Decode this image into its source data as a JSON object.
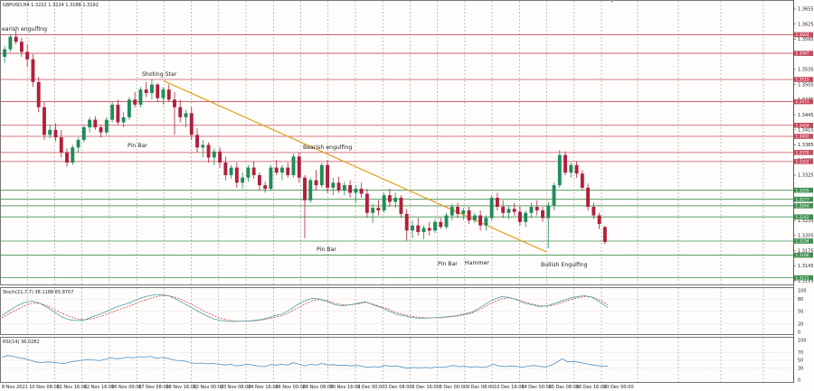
{
  "symbol_header": "GBPUSD,H4  1.3222 1.3224 1.3188 1.3192",
  "colors": {
    "background": "#fffdfb",
    "grid": "#9a9a9a",
    "bull_candle": "#1f8c5a",
    "bear_candle": "#b0203a",
    "resistance": "#c74c5c",
    "support": "#3f8f4f",
    "trendline": "#e0a020",
    "stoch_main": "#4aa0a6",
    "stoch_signal": "#d0404a",
    "rsi": "#4a90c8"
  },
  "chart_data": {
    "type": "candlestick",
    "symbol": "GBPUSD",
    "timeframe": "H4",
    "ohlc_header": {
      "open": 1.3222,
      "high": 1.3224,
      "low": 1.3188,
      "close": 1.3192
    },
    "y_axis_labels": [
      "1.3655",
      "1.3625",
      "1.3595",
      "1.3565",
      "1.3535",
      "1.3505",
      "1.3475",
      "1.3445",
      "1.3415",
      "1.3385",
      "1.3355",
      "1.3325",
      "1.3295",
      "1.3265",
      "1.3235",
      "1.3205",
      "1.3175",
      "1.3145",
      "1.3115"
    ],
    "x_axis_labels": [
      "8 Nov 2021",
      "10 Nov 08:00",
      "11 Nov 16:00",
      "12 Nov 16:00",
      "16 Nov 00:00",
      "17 Nov 08:00",
      "18 Nov 16:00",
      "22 Nov 00:00",
      "23 Nov 08:00",
      "24 Nov 16:00",
      "26 Nov 00:00",
      "29 Nov 08:00",
      "30 Nov 16:00",
      "2 Dec 00:00",
      "3 Dec 08:00",
      "6 Dec 16:00",
      "8 Dec 00:00",
      "9 Dec 08:00",
      "10 Dec 16:00",
      "14 Dec 00:00",
      "15 Dec 08:00",
      "16 Dec 16:00",
      "20 Dec 00:00"
    ],
    "resistance_levels": [
      1.3604,
      1.3567,
      1.3515,
      1.3471,
      1.3424,
      1.3402,
      1.337,
      1.3352
    ],
    "support_levels": [
      1.3295,
      1.3277,
      1.3264,
      1.3242,
      1.3194,
      1.3166,
      1.3121
    ],
    "price_tags": [
      "1.3604",
      "1.3567",
      "1.3515",
      "1.3471",
      "1.3424",
      "1.3402",
      "1.3370",
      "1.3352",
      "1.3295",
      "1.3277",
      "1.3264",
      "1.3242",
      "1.3194",
      "1.3166",
      "1.3121"
    ],
    "trendline": {
      "from": {
        "x": "18 Nov 16:00",
        "y": 1.3512
      },
      "to": {
        "x": "15 Dec 08:00",
        "y": 1.3172
      }
    },
    "annotations": [
      "earish engulfing",
      "Shoting Star",
      "Pin Bar",
      "Bearish engulfing",
      "Pin Bar",
      "Pin Bar",
      "Hammer",
      "Bullish Engulfing"
    ],
    "candles": [
      [
        1.356,
        1.3582,
        1.3548,
        1.3575
      ],
      [
        1.3575,
        1.3605,
        1.357,
        1.36
      ],
      [
        1.36,
        1.3612,
        1.3585,
        1.359
      ],
      [
        1.359,
        1.3598,
        1.356,
        1.357
      ],
      [
        1.357,
        1.3585,
        1.354,
        1.3555
      ],
      [
        1.3555,
        1.3565,
        1.35,
        1.351
      ],
      [
        1.351,
        1.352,
        1.345,
        1.346
      ],
      [
        1.346,
        1.347,
        1.3395,
        1.3405
      ],
      [
        1.3405,
        1.3425,
        1.3398,
        1.3415
      ],
      [
        1.3415,
        1.3428,
        1.3392,
        1.34
      ],
      [
        1.34,
        1.3415,
        1.336,
        1.337
      ],
      [
        1.337,
        1.3378,
        1.3342,
        1.335
      ],
      [
        1.335,
        1.3385,
        1.3345,
        1.338
      ],
      [
        1.338,
        1.34,
        1.337,
        1.3395
      ],
      [
        1.3395,
        1.3425,
        1.339,
        1.342
      ],
      [
        1.342,
        1.344,
        1.341,
        1.3435
      ],
      [
        1.3435,
        1.3442,
        1.3415,
        1.342
      ],
      [
        1.342,
        1.3425,
        1.34,
        1.341
      ],
      [
        1.341,
        1.344,
        1.3405,
        1.3435
      ],
      [
        1.3435,
        1.347,
        1.343,
        1.3465
      ],
      [
        1.3465,
        1.3475,
        1.3425,
        1.343
      ],
      [
        1.343,
        1.345,
        1.342,
        1.344
      ],
      [
        1.344,
        1.348,
        1.3435,
        1.3475
      ],
      [
        1.3475,
        1.349,
        1.346,
        1.3465
      ],
      [
        1.3465,
        1.35,
        1.346,
        1.3495
      ],
      [
        1.3495,
        1.351,
        1.348,
        1.3488
      ],
      [
        1.3488,
        1.3515,
        1.3475,
        1.3505
      ],
      [
        1.3505,
        1.3508,
        1.347,
        1.3478
      ],
      [
        1.3478,
        1.35,
        1.3465,
        1.3495
      ],
      [
        1.3495,
        1.3505,
        1.347,
        1.3475
      ],
      [
        1.3475,
        1.349,
        1.3405,
        1.346
      ],
      [
        1.346,
        1.3475,
        1.343,
        1.344
      ],
      [
        1.344,
        1.3455,
        1.342,
        1.3448
      ],
      [
        1.3448,
        1.346,
        1.3395,
        1.3405
      ],
      [
        1.3405,
        1.3418,
        1.337,
        1.338
      ],
      [
        1.338,
        1.3395,
        1.336,
        1.3385
      ],
      [
        1.3385,
        1.339,
        1.335,
        1.336
      ],
      [
        1.336,
        1.3378,
        1.3345,
        1.3372
      ],
      [
        1.3372,
        1.338,
        1.334,
        1.335
      ],
      [
        1.335,
        1.3362,
        1.3315,
        1.3325
      ],
      [
        1.3325,
        1.3345,
        1.3318,
        1.334
      ],
      [
        1.334,
        1.335,
        1.33,
        1.331
      ],
      [
        1.331,
        1.333,
        1.3298,
        1.332
      ],
      [
        1.332,
        1.3345,
        1.3312,
        1.334
      ],
      [
        1.334,
        1.3352,
        1.3318,
        1.3325
      ],
      [
        1.3325,
        1.333,
        1.3295,
        1.3305
      ],
      [
        1.3305,
        1.3312,
        1.329,
        1.3298
      ],
      [
        1.3298,
        1.3345,
        1.3295,
        1.334
      ],
      [
        1.334,
        1.3355,
        1.3325,
        1.333
      ],
      [
        1.333,
        1.3345,
        1.3315,
        1.334
      ],
      [
        1.334,
        1.335,
        1.332,
        1.3325
      ],
      [
        1.3325,
        1.3368,
        1.332,
        1.3362
      ],
      [
        1.3362,
        1.337,
        1.331,
        1.332
      ],
      [
        1.332,
        1.3325,
        1.32,
        1.3275
      ],
      [
        1.3275,
        1.332,
        1.327,
        1.3315
      ],
      [
        1.3315,
        1.3335,
        1.3295,
        1.3305
      ],
      [
        1.3305,
        1.335,
        1.33,
        1.3345
      ],
      [
        1.3345,
        1.3355,
        1.329,
        1.33
      ],
      [
        1.33,
        1.332,
        1.3285,
        1.331
      ],
      [
        1.331,
        1.3322,
        1.329,
        1.3295
      ],
      [
        1.3295,
        1.3312,
        1.3285,
        1.3305
      ],
      [
        1.3305,
        1.3315,
        1.328,
        1.329
      ],
      [
        1.329,
        1.3305,
        1.327,
        1.3298
      ],
      [
        1.3298,
        1.331,
        1.328,
        1.3288
      ],
      [
        1.3288,
        1.3298,
        1.324,
        1.325
      ],
      [
        1.325,
        1.3268,
        1.323,
        1.326
      ],
      [
        1.326,
        1.3275,
        1.3245,
        1.3255
      ],
      [
        1.3255,
        1.329,
        1.325,
        1.3285
      ],
      [
        1.3285,
        1.3298,
        1.3262,
        1.3272
      ],
      [
        1.3272,
        1.329,
        1.326,
        1.328
      ],
      [
        1.328,
        1.3285,
        1.324,
        1.3248
      ],
      [
        1.3248,
        1.3258,
        1.3195,
        1.3215
      ],
      [
        1.3215,
        1.3235,
        1.32,
        1.3225
      ],
      [
        1.3225,
        1.324,
        1.3205,
        1.3212
      ],
      [
        1.3212,
        1.3225,
        1.3198,
        1.322
      ],
      [
        1.322,
        1.3232,
        1.3205,
        1.3215
      ],
      [
        1.3215,
        1.3238,
        1.321,
        1.3232
      ],
      [
        1.3232,
        1.324,
        1.3218,
        1.3222
      ],
      [
        1.3222,
        1.325,
        1.3218,
        1.3245
      ],
      [
        1.3245,
        1.3268,
        1.3235,
        1.3262
      ],
      [
        1.3262,
        1.327,
        1.324,
        1.3248
      ],
      [
        1.3248,
        1.326,
        1.3236,
        1.3255
      ],
      [
        1.3255,
        1.3262,
        1.3228,
        1.3235
      ],
      [
        1.3235,
        1.325,
        1.323,
        1.3245
      ],
      [
        1.3245,
        1.3255,
        1.3215,
        1.3225
      ],
      [
        1.3225,
        1.3245,
        1.3215,
        1.324
      ],
      [
        1.324,
        1.3285,
        1.3235,
        1.328
      ],
      [
        1.328,
        1.329,
        1.3255,
        1.3262
      ],
      [
        1.3262,
        1.3275,
        1.324,
        1.325
      ],
      [
        1.325,
        1.3265,
        1.3238,
        1.3258
      ],
      [
        1.3258,
        1.327,
        1.3245,
        1.3252
      ],
      [
        1.3252,
        1.3262,
        1.3225,
        1.3232
      ],
      [
        1.3232,
        1.3255,
        1.3222,
        1.325
      ],
      [
        1.325,
        1.327,
        1.324,
        1.3262
      ],
      [
        1.3262,
        1.3275,
        1.3245,
        1.3255
      ],
      [
        1.3255,
        1.3262,
        1.3232,
        1.324
      ],
      [
        1.324,
        1.3272,
        1.318,
        1.3265
      ],
      [
        1.3265,
        1.331,
        1.3255,
        1.3305
      ],
      [
        1.3305,
        1.3375,
        1.33,
        1.3365
      ],
      [
        1.3365,
        1.3372,
        1.3325,
        1.333
      ],
      [
        1.333,
        1.335,
        1.332,
        1.3345
      ],
      [
        1.3345,
        1.3352,
        1.332,
        1.3328
      ],
      [
        1.3328,
        1.3335,
        1.3295,
        1.33
      ],
      [
        1.33,
        1.3308,
        1.3255,
        1.3262
      ],
      [
        1.3262,
        1.327,
        1.3238,
        1.3245
      ],
      [
        1.3245,
        1.325,
        1.3218,
        1.3228
      ],
      [
        1.3222,
        1.3224,
        1.3188,
        1.3192
      ]
    ],
    "stochastic": {
      "title": "Stoch(21,7,7) 38.1188 65.8707",
      "y_axis_labels": [
        "100",
        "80",
        "50",
        "20",
        "0"
      ],
      "main": [
        40,
        52,
        64,
        72,
        75,
        70,
        60,
        48,
        36,
        30,
        28,
        30,
        38,
        44,
        52,
        60,
        66,
        72,
        80,
        86,
        90,
        91,
        88,
        80,
        70,
        60,
        50,
        40,
        32,
        28,
        26,
        26,
        27,
        28,
        30,
        34,
        40,
        44,
        54,
        66,
        76,
        82,
        80,
        74,
        66,
        64,
        66,
        70,
        74,
        66,
        60,
        52,
        44,
        40,
        36,
        34,
        34,
        35,
        36,
        38,
        40,
        44,
        48,
        58,
        70,
        80,
        86,
        84,
        78,
        70,
        66,
        62,
        64,
        70,
        76,
        82,
        86,
        88,
        84,
        72,
        60
      ],
      "signal": [
        35,
        45,
        55,
        64,
        70,
        70,
        64,
        55,
        45,
        38,
        32,
        30,
        33,
        38,
        45,
        52,
        58,
        64,
        72,
        78,
        84,
        88,
        88,
        84,
        76,
        68,
        58,
        48,
        40,
        33,
        29,
        27,
        27,
        27,
        29,
        32,
        36,
        40,
        48,
        58,
        68,
        76,
        79,
        76,
        70,
        66,
        66,
        68,
        72,
        68,
        62,
        56,
        48,
        43,
        39,
        36,
        35,
        35,
        35,
        37,
        39,
        42,
        46,
        54,
        64,
        74,
        81,
        83,
        79,
        73,
        68,
        64,
        63,
        66,
        72,
        78,
        83,
        86,
        85,
        77,
        66
      ]
    },
    "rsi": {
      "title": "RSI(14) 36.0282",
      "y_axis_labels": [
        "100",
        "70",
        "50",
        "30",
        "0"
      ],
      "values": [
        58,
        62,
        60,
        56,
        54,
        50,
        46,
        44,
        46,
        45,
        43,
        42,
        46,
        48,
        50,
        52,
        51,
        49,
        52,
        56,
        54,
        55,
        58,
        56,
        59,
        58,
        60,
        55,
        57,
        55,
        51,
        49,
        48,
        44,
        42,
        43,
        41,
        42,
        40,
        38,
        40,
        36,
        38,
        40,
        38,
        35,
        34,
        39,
        38,
        40,
        38,
        44,
        40,
        36,
        40,
        38,
        42,
        38,
        39,
        37,
        38,
        36,
        37,
        35,
        32,
        34,
        33,
        37,
        35,
        36,
        33,
        30,
        32,
        31,
        32,
        31,
        33,
        32,
        34,
        37,
        34,
        35,
        33,
        34,
        32,
        34,
        40,
        36,
        34,
        36,
        35,
        33,
        35,
        37,
        35,
        33,
        37,
        44,
        54,
        46,
        47,
        45,
        42,
        39,
        37,
        35,
        36
      ]
    }
  }
}
